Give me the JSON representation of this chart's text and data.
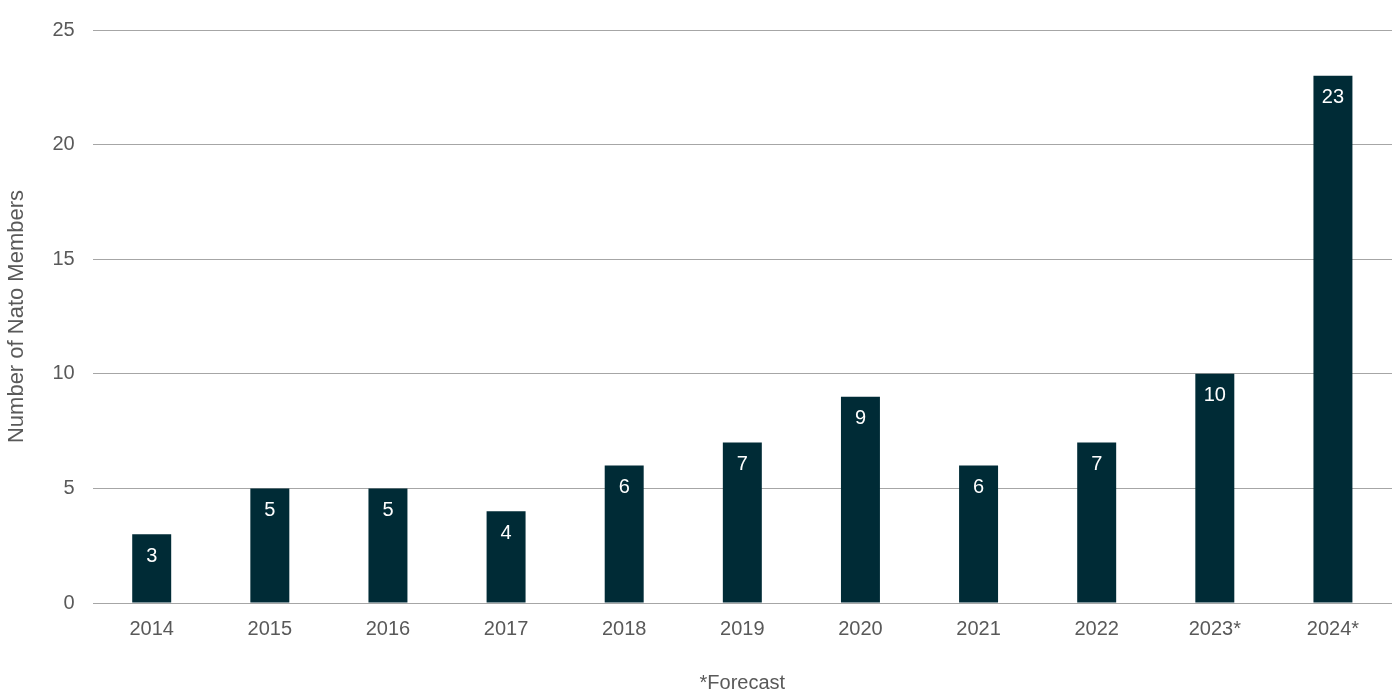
{
  "chart_data": {
    "type": "bar",
    "ylabel": "Number of Nato Members",
    "categories": [
      "2014",
      "2015",
      "2016",
      "2017",
      "2018",
      "2019",
      "2020",
      "2021",
      "2022",
      "2023*",
      "2024*"
    ],
    "values": [
      3,
      5,
      5,
      4,
      6,
      7,
      9,
      6,
      7,
      10,
      23
    ],
    "color": "#002b36",
    "ylim": [
      0,
      25
    ],
    "yticks": [
      0,
      5,
      10,
      15,
      20,
      25
    ],
    "grid": "y",
    "data_labels": true,
    "annotations": [
      "*Forecast"
    ]
  }
}
